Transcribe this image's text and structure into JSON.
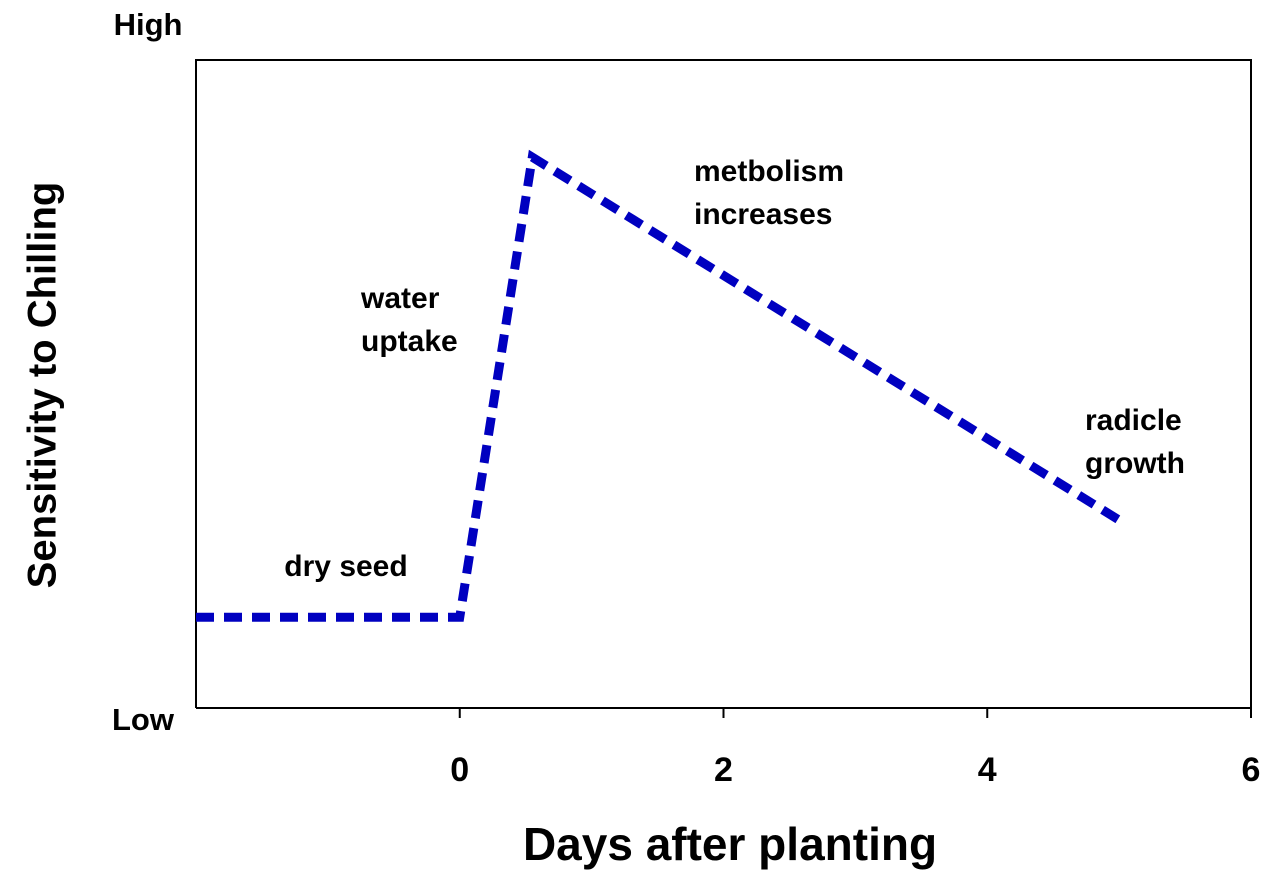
{
  "chart_data": {
    "type": "line",
    "xlabel": "Days after planting",
    "ylabel": "Sensitivity to Chilling",
    "y_high_label": "High",
    "y_low_label": "Low",
    "xlim": [
      -2,
      6
    ],
    "xticks": [
      0,
      2,
      4,
      6
    ],
    "ylim": [
      0,
      10
    ],
    "series": [
      {
        "color": "#0000c0",
        "x": [
          -2,
          0,
          0.55,
          5
        ],
        "values": [
          1.4,
          1.4,
          8.5,
          2.9
        ]
      }
    ],
    "annotations": [
      [
        "dry seed"
      ],
      [
        "water",
        "uptake"
      ],
      [
        "metbolism",
        "increases"
      ],
      [
        "radicle",
        "growth"
      ]
    ]
  }
}
